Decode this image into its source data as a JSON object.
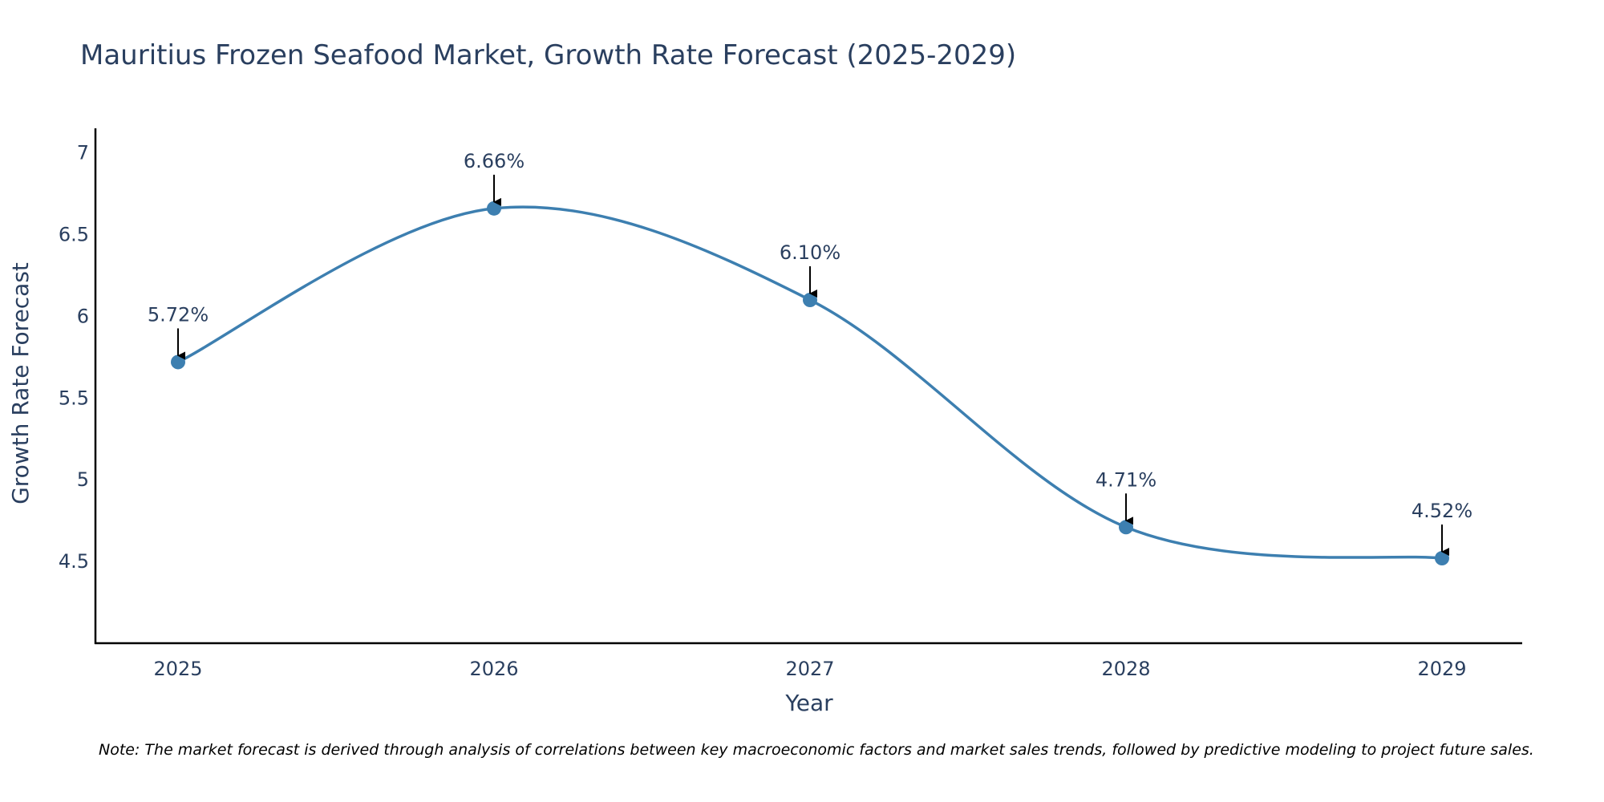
{
  "chart_data": {
    "type": "line",
    "title": "Mauritius Frozen Seafood Market, Growth Rate Forecast (2025-2029)",
    "xlabel": "Year",
    "ylabel": "Growth Rate Forecast",
    "categories": [
      "2025",
      "2026",
      "2027",
      "2028",
      "2029"
    ],
    "values": [
      5.72,
      6.66,
      6.1,
      4.71,
      4.52
    ],
    "data_labels": [
      "5.72%",
      "6.66%",
      "6.10%",
      "4.71%",
      "4.52%"
    ],
    "y_ticks": [
      4.5,
      5,
      5.5,
      6,
      6.5,
      7
    ],
    "y_tick_labels": [
      "4.5",
      "5",
      "5.5",
      "6",
      "6.5",
      "7"
    ],
    "ylim": [
      4.0,
      7.15
    ],
    "grid": false,
    "line_color": "#3d7fb0",
    "marker_color": "#3d7fb0",
    "arrow_color": "#000000",
    "note": "Note: The market forecast is derived through analysis of correlations between key macroeconomic factors and market sales trends, followed by predictive modeling to project future sales."
  }
}
